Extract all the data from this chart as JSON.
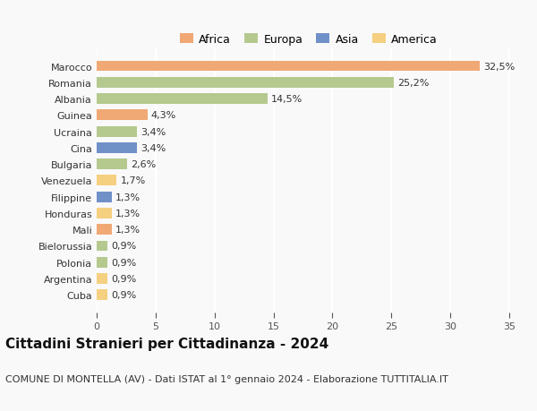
{
  "countries": [
    "Cuba",
    "Argentina",
    "Polonia",
    "Bielorussia",
    "Mali",
    "Honduras",
    "Filippine",
    "Venezuela",
    "Bulgaria",
    "Cina",
    "Ucraina",
    "Guinea",
    "Albania",
    "Romania",
    "Marocco"
  ],
  "values": [
    0.9,
    0.9,
    0.9,
    0.9,
    1.3,
    1.3,
    1.3,
    1.7,
    2.6,
    3.4,
    3.4,
    4.3,
    14.5,
    25.2,
    32.5
  ],
  "labels": [
    "0,9%",
    "0,9%",
    "0,9%",
    "0,9%",
    "1,3%",
    "1,3%",
    "1,3%",
    "1,7%",
    "2,6%",
    "3,4%",
    "3,4%",
    "4,3%",
    "14,5%",
    "25,2%",
    "32,5%"
  ],
  "continents": [
    "America",
    "America",
    "Europa",
    "Europa",
    "Africa",
    "America",
    "Asia",
    "America",
    "Europa",
    "Asia",
    "Europa",
    "Africa",
    "Europa",
    "Europa",
    "Africa"
  ],
  "colors": {
    "Africa": "#F0A875",
    "Europa": "#B5C98E",
    "Asia": "#7090C8",
    "America": "#F5D080"
  },
  "legend_order": [
    "Africa",
    "Europa",
    "Asia",
    "America"
  ],
  "title": "Cittadini Stranieri per Cittadinanza - 2024",
  "subtitle": "COMUNE DI MONTELLA (AV) - Dati ISTAT al 1° gennaio 2024 - Elaborazione TUTTITALIA.IT",
  "xlim": [
    0,
    36
  ],
  "xticks": [
    0,
    5,
    10,
    15,
    20,
    25,
    30,
    35
  ],
  "background_color": "#f9f9f9",
  "bar_height": 0.65,
  "title_fontsize": 11,
  "subtitle_fontsize": 8,
  "label_fontsize": 8,
  "tick_fontsize": 8,
  "legend_fontsize": 9
}
